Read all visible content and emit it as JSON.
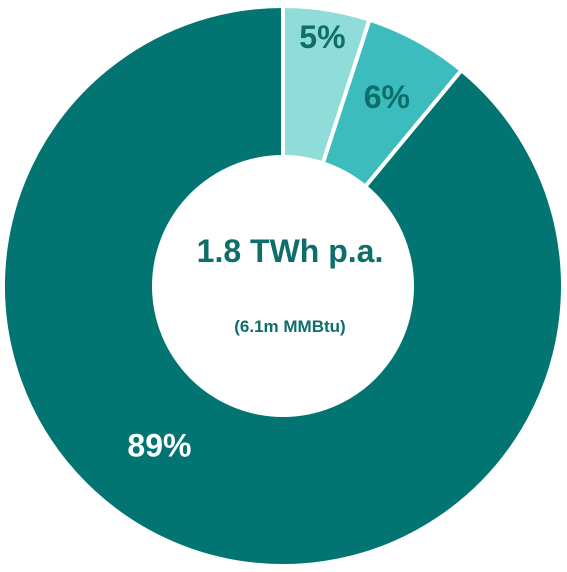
{
  "chart_data": {
    "type": "pie",
    "variant": "donut",
    "slices": [
      {
        "label": "5%",
        "value": 5,
        "color": "#8fdcd8",
        "label_color": "#0d6e6a"
      },
      {
        "label": "6%",
        "value": 6,
        "color": "#3cbcbc",
        "label_color": "#0d6e6a"
      },
      {
        "label": "89%",
        "value": 89,
        "color": "#027573",
        "label_color": "#ffffff"
      }
    ],
    "center_text": {
      "title": "1.8 TWh p.a.",
      "subtitle": "(6.1m MMBtu)",
      "color": "#0d6e6a"
    },
    "start_angle_deg": 0,
    "direction": "clockwise",
    "background_color": "#ffffff",
    "separator_color": "#ffffff"
  }
}
